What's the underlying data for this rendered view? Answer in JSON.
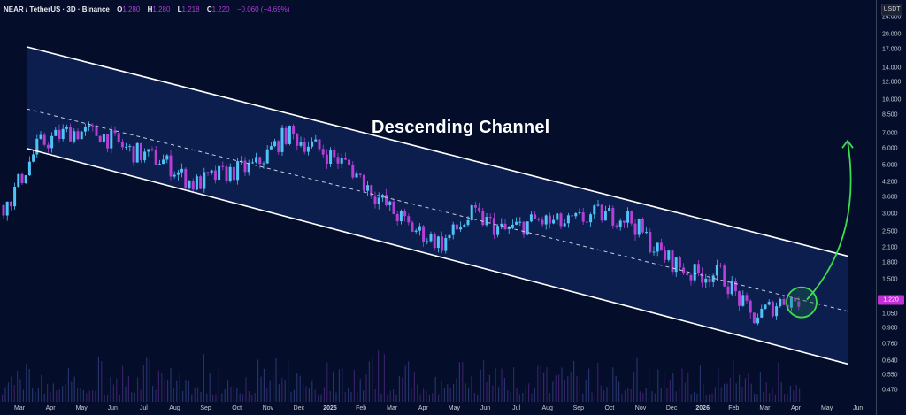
{
  "header": {
    "symbol": "NEAR / TetherUS · 3D · Binance",
    "open_label": "O",
    "open": "1.280",
    "high_label": "H",
    "high": "1.280",
    "low_label": "L",
    "low": "1.218",
    "close_label": "C",
    "close": "1.220",
    "change": "−0.060 (−4.69%)"
  },
  "currency": "USDT",
  "current_price": "1.220",
  "annotation": {
    "title": "Descending Channel"
  },
  "colors": {
    "background": "#040d2a",
    "channel_fill": "#0d2459",
    "up_candle": "#4fc3f7",
    "down_candle": "#b53fd6",
    "channel_line": "#ffffff",
    "arrow": "#3ddc4f",
    "price_badge": "#c22fd9"
  },
  "y_axis": {
    "ticks": [
      "24.000",
      "20.000",
      "17.000",
      "14.000",
      "12.000",
      "10.000",
      "8.500",
      "7.000",
      "6.000",
      "5.000",
      "4.200",
      "3.600",
      "3.000",
      "2.500",
      "2.100",
      "1.800",
      "1.500",
      "1.050",
      "0.900",
      "0.760",
      "0.640",
      "0.550",
      "0.470"
    ]
  },
  "x_axis": {
    "ticks": [
      "Mar",
      "Apr",
      "May",
      "Jun",
      "Jul",
      "Aug",
      "Sep",
      "Oct",
      "Nov",
      "Dec",
      "2025",
      "Feb",
      "Mar",
      "Apr",
      "May",
      "Jun",
      "Jul",
      "Aug",
      "Sep",
      "Oct",
      "Nov",
      "Dec",
      "2026",
      "Feb",
      "Mar",
      "Apr",
      "May",
      "Jun"
    ]
  },
  "chart_data": {
    "type": "candlestick",
    "title": "NEAR / TetherUS · 3D · Binance",
    "annotation": "Descending Channel",
    "scale": "log",
    "ylim": [
      0.47,
      24.0
    ],
    "x_ticks": [
      "Mar",
      "Apr",
      "May",
      "Jun",
      "Jul",
      "Aug",
      "Sep",
      "Oct",
      "Nov",
      "Dec",
      "2025",
      "Feb",
      "Mar",
      "Apr",
      "May",
      "Jun",
      "Jul",
      "Aug",
      "Sep",
      "Oct",
      "Nov",
      "Dec",
      "2026",
      "Feb",
      "Mar",
      "Apr",
      "May",
      "Jun"
    ],
    "y_ticks": [
      24.0,
      20.0,
      17.0,
      14.0,
      12.0,
      10.0,
      8.5,
      7.0,
      6.0,
      5.0,
      4.2,
      3.6,
      3.0,
      2.5,
      2.1,
      1.8,
      1.5,
      1.05,
      0.9,
      0.76,
      0.64,
      0.55,
      0.47
    ],
    "last": {
      "open": 1.28,
      "high": 1.28,
      "low": 1.218,
      "close": 1.22,
      "change": -0.06,
      "change_pct": -4.69
    },
    "closes_by_month": {
      "x": [
        "Feb-24",
        "Mar-24",
        "Apr-24",
        "May-24",
        "Jun-24",
        "Jul-24",
        "Aug-24",
        "Sep-24",
        "Oct-24",
        "Nov-24",
        "Dec-24",
        "Jan-25",
        "Feb-25",
        "Mar-25",
        "Apr-25",
        "May-25",
        "Jun-25",
        "Jul-25",
        "Aug-25",
        "Sep-25",
        "Oct-25",
        "Nov-25",
        "Dec-25",
        "Jan-26",
        "Feb-26",
        "Mar-26"
      ],
      "close": [
        3.3,
        6.2,
        7.2,
        7.0,
        5.8,
        5.3,
        4.1,
        4.6,
        5.0,
        7.0,
        6.0,
        5.0,
        3.5,
        2.6,
        2.2,
        3.0,
        2.5,
        2.8,
        2.7,
        3.0,
        2.9,
        2.0,
        1.6,
        1.6,
        1.0,
        1.22
      ]
    },
    "channel": {
      "upper": [
        {
          "x": "Mar-24",
          "price": 17.5
        },
        {
          "x": "Apr-26",
          "price": 1.93
        }
      ],
      "mid": [
        {
          "x": "Mar-24",
          "price": 9.1
        },
        {
          "x": "Apr-26",
          "price": 1.08
        }
      ],
      "lower": [
        {
          "x": "Mar-24",
          "price": 6.0
        },
        {
          "x": "Apr-26",
          "price": 0.62
        }
      ]
    },
    "projection": {
      "from_price": 1.22,
      "to_price": 6.5,
      "note": "breakout arrow from channel midline toward ~6.5"
    }
  }
}
